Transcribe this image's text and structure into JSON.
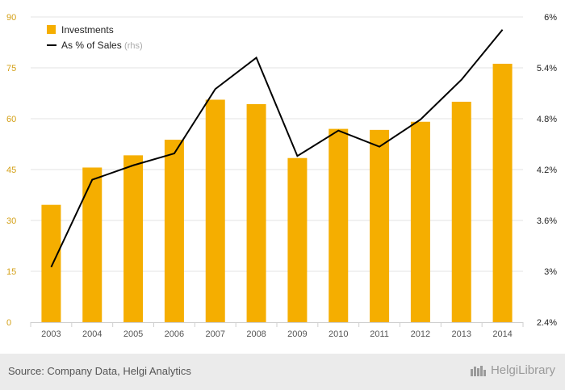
{
  "chart_data": {
    "type": "bar+line",
    "categories": [
      "2003",
      "2004",
      "2005",
      "2006",
      "2007",
      "2008",
      "2009",
      "2010",
      "2011",
      "2012",
      "2013",
      "2014"
    ],
    "series": [
      {
        "name": "Investments",
        "type": "bar",
        "axis": "left",
        "color": "#f5ae00",
        "values": [
          34.6,
          45.6,
          49.2,
          53.8,
          65.6,
          64.3,
          48.4,
          57.0,
          56.7,
          59.1,
          65.0,
          76.2
        ]
      },
      {
        "name": "As % of Sales",
        "name_suffix": "(rhs)",
        "type": "line",
        "axis": "right",
        "color": "#000000",
        "values": [
          3.05,
          4.08,
          4.25,
          4.39,
          5.15,
          5.52,
          4.36,
          4.66,
          4.47,
          4.79,
          5.26,
          5.85
        ]
      }
    ],
    "y_left": {
      "min": 0,
      "max": 90,
      "ticks": [
        "0",
        "15",
        "30",
        "45",
        "60",
        "75",
        "90"
      ],
      "tick_values": [
        0,
        15,
        30,
        45,
        60,
        75,
        90
      ]
    },
    "y_right": {
      "min": 2.4,
      "max": 6.0,
      "ticks": [
        "2.4%",
        "3%",
        "3.6%",
        "4.2%",
        "4.8%",
        "5.4%",
        "6%"
      ],
      "tick_values": [
        2.4,
        3.0,
        3.6,
        4.2,
        4.8,
        5.4,
        6.0
      ]
    },
    "grid": true,
    "legend_position": "top-left"
  },
  "footer": {
    "source": "Source: Company Data, Helgi Analytics",
    "brand": "HelgiLibrary"
  }
}
